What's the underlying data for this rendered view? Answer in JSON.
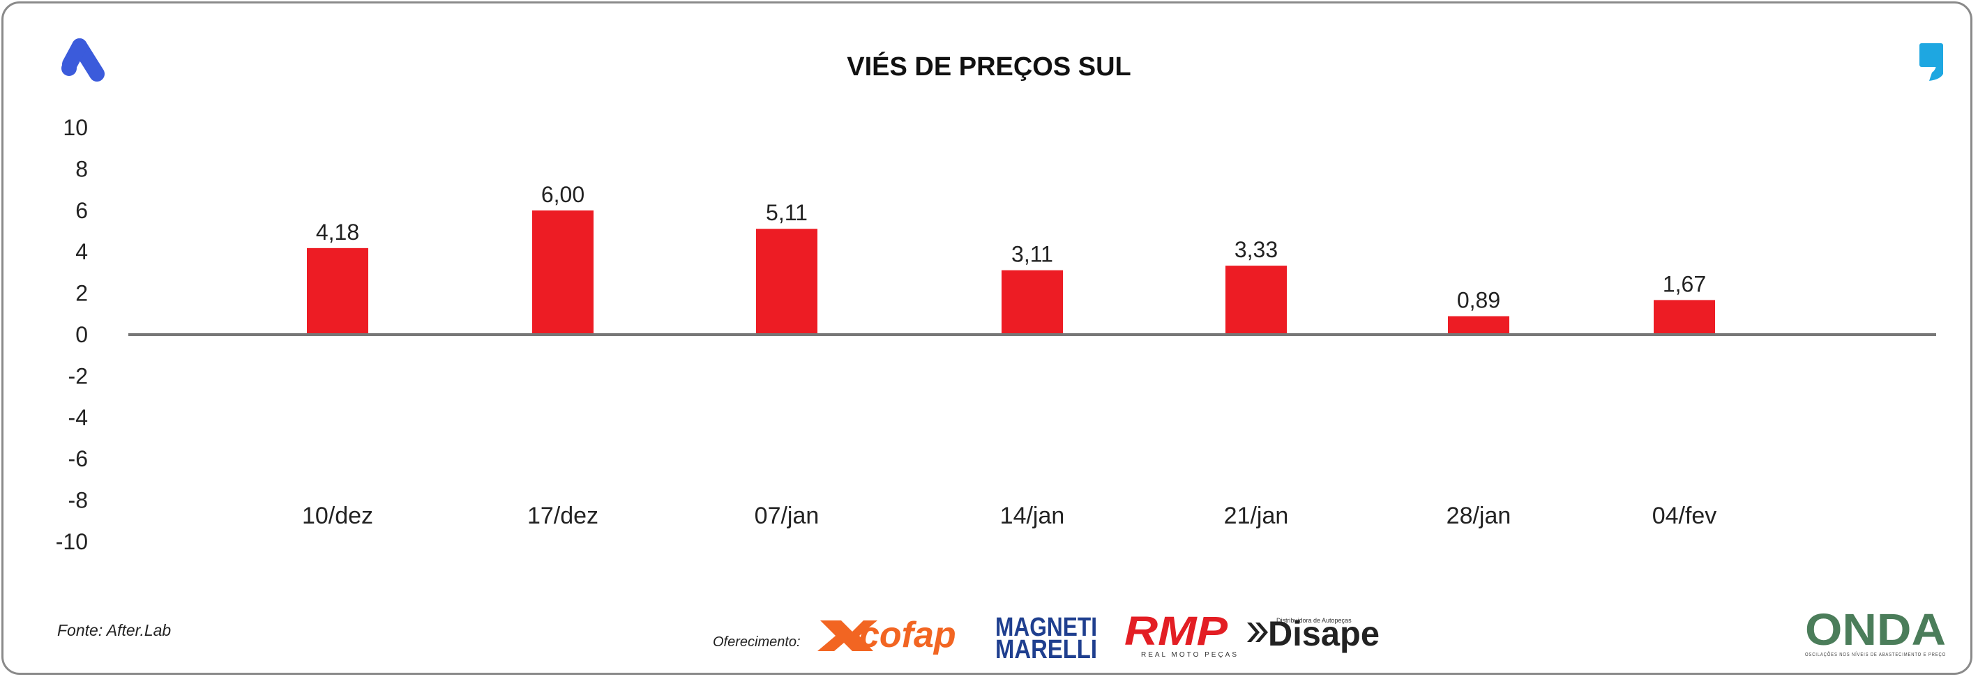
{
  "title": "VIÉS DE PREÇOS SUL",
  "source": "Fonte: After.Lab",
  "sponsors": {
    "label": "Oferecimento:",
    "cofap": "cofap",
    "magneti_line1": "MAGNETI",
    "magneti_line2": "MARELLI",
    "rmp": "RMP",
    "rmp_sub": "REAL MOTO PEÇAS",
    "disape": "Disape",
    "disape_sub": "Distribuidora de Autopeças"
  },
  "footer_logo": {
    "name": "ONDA",
    "tagline": "OSCILAÇÕES NOS NÍVEIS DE ABASTECIMENTO E PREÇO"
  },
  "colors": {
    "bar": "#ed1c24",
    "axis": "#777777",
    "brand_left": "#3b5bdb",
    "brand_right": "#1ea7e1"
  },
  "icons": {
    "left": "brand-a-icon",
    "right": "quote-icon"
  },
  "chart_data": {
    "type": "bar",
    "categories": [
      "10/dez",
      "17/dez",
      "07/jan",
      "14/jan",
      "21/jan",
      "28/jan",
      "04/fev"
    ],
    "values": [
      4.18,
      6.0,
      5.11,
      3.11,
      3.33,
      0.89,
      1.67
    ],
    "value_labels": [
      "4,18",
      "6,00",
      "5,11",
      "3,11",
      "3,33",
      "0,89",
      "1,67"
    ],
    "title": "VIÉS DE PREÇOS SUL",
    "xlabel": "",
    "ylabel": "",
    "ylim": [
      -10,
      10
    ],
    "yticks": [
      10,
      8,
      6,
      4,
      2,
      0,
      -2,
      -4,
      -6,
      -8,
      -10
    ],
    "grid": false,
    "legend": "none"
  }
}
